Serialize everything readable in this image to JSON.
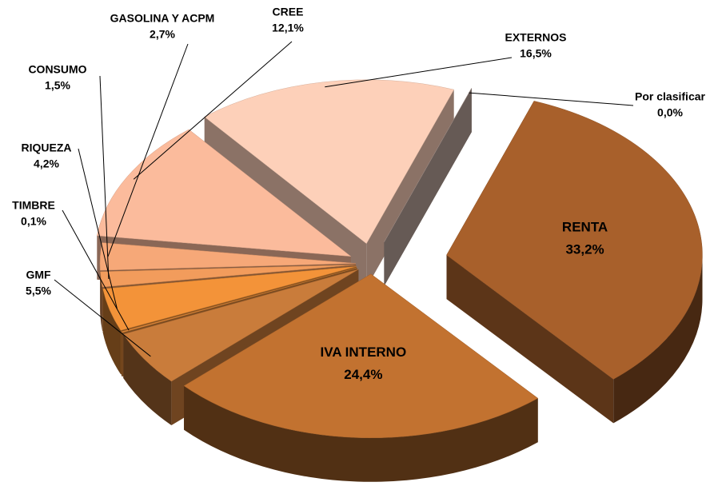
{
  "chart_data": {
    "type": "pie",
    "categories": [
      "RENTA",
      "IVA INTERNO",
      "GMF",
      "TIMBRE",
      "RIQUEZA",
      "CONSUMO",
      "GASOLINA Y ACPM",
      "CREE",
      "EXTERNOS",
      "Por clasificar"
    ],
    "values": [
      33.2,
      24.4,
      5.5,
      0.1,
      4.2,
      1.5,
      2.7,
      12.1,
      16.5,
      0.0
    ],
    "value_labels": [
      "33,2%",
      "24,4%",
      "5,5%",
      "0,1%",
      "4,2%",
      "1,5%",
      "2,7%",
      "12,1%",
      "16,5%",
      "0,0%"
    ],
    "colors": [
      "#a8602b",
      "#c27230",
      "#c97c3b",
      "#e0883a",
      "#f39339",
      "#f29c5c",
      "#f6a878",
      "#fbbb9c",
      "#fdd0b9",
      "#b9a49b"
    ]
  }
}
